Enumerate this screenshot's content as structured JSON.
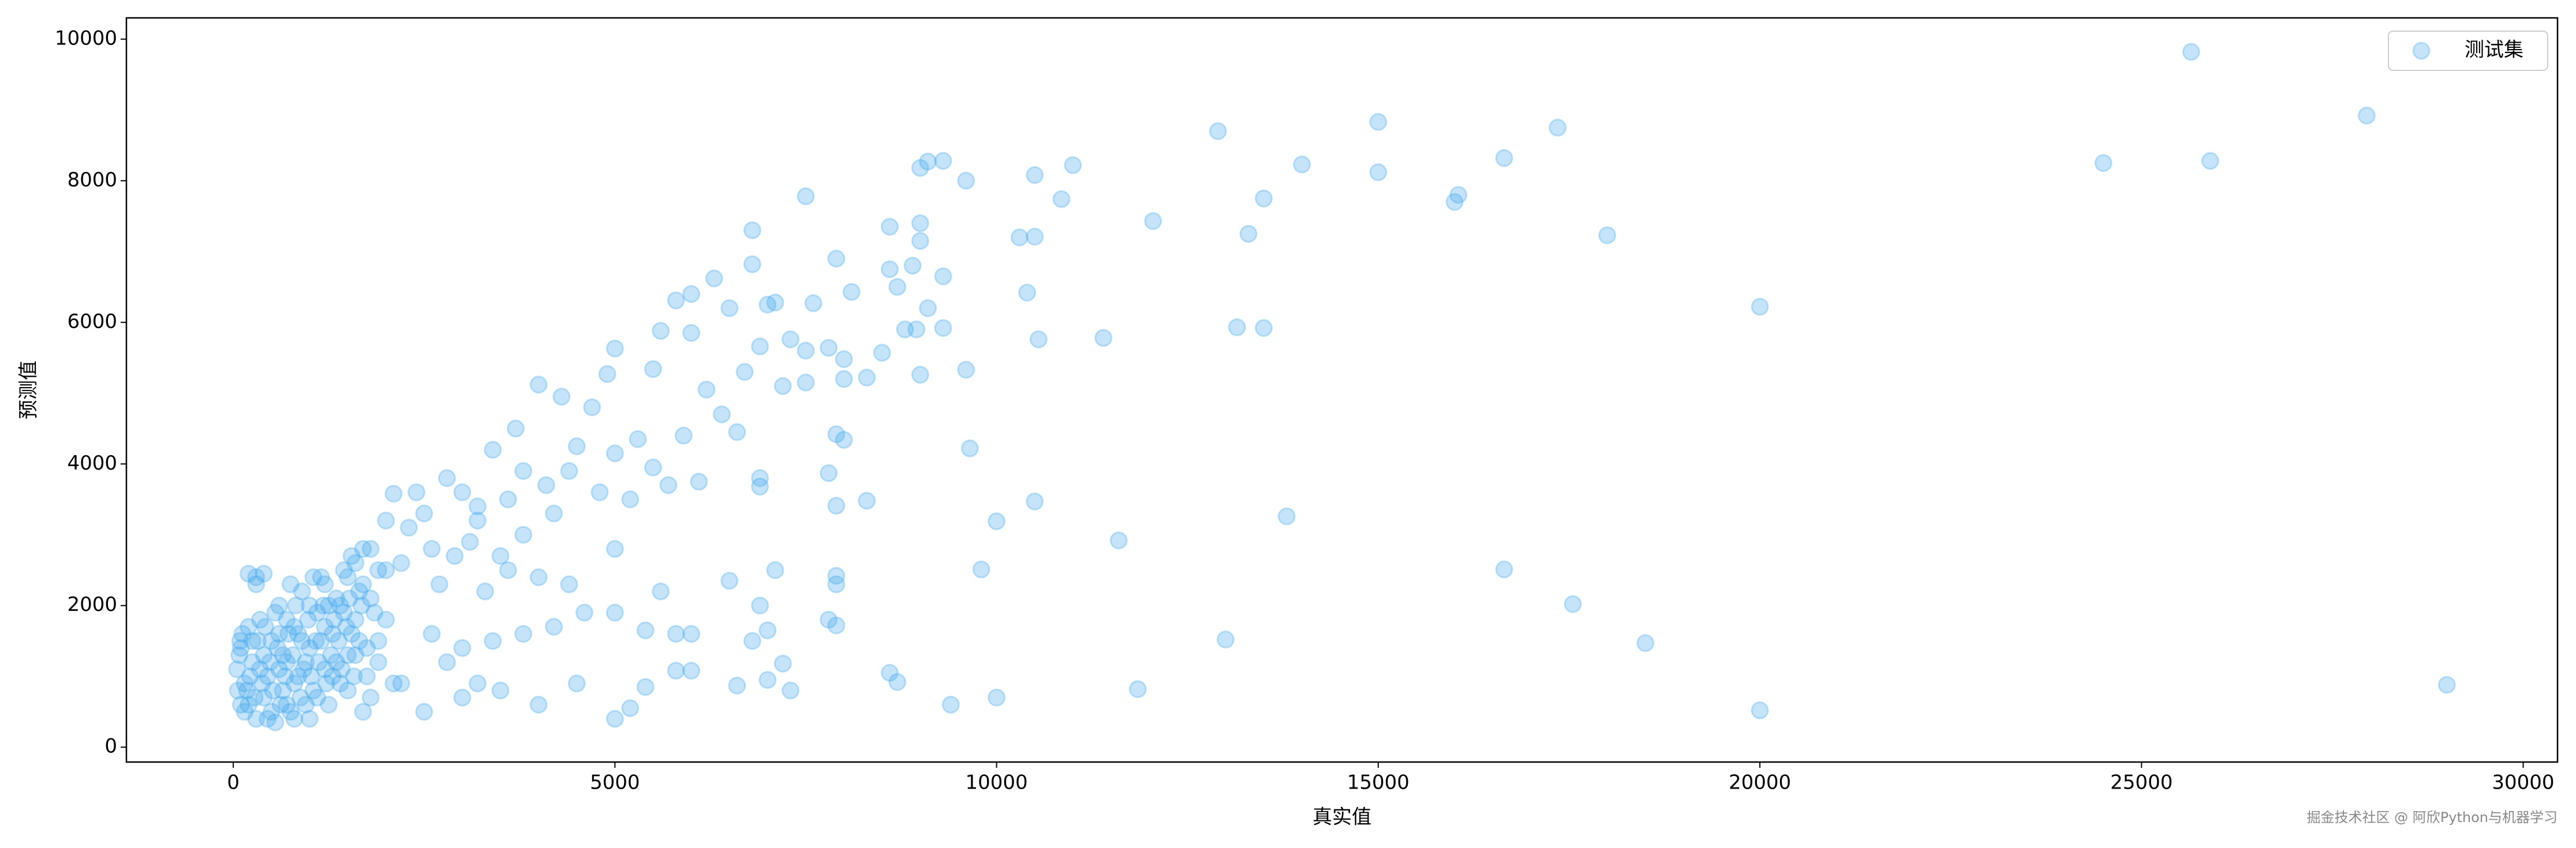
{
  "chart_data": {
    "type": "scatter",
    "xlabel": "真实值",
    "ylabel": "预测值",
    "xlim": [
      -1400,
      30450
    ],
    "ylim": [
      -210,
      10300
    ],
    "xticks": [
      0,
      5000,
      10000,
      15000,
      20000,
      25000,
      30000
    ],
    "yticks": [
      0,
      2000,
      4000,
      6000,
      8000,
      10000
    ],
    "grid": false,
    "legend": "upper right",
    "alpha": 0.3,
    "watermark": "掘金技术社区 @ 阿欣Python与机器学习",
    "series": [
      {
        "name": "测试集",
        "color": "#3fa4ec",
        "x": [
          25650,
          27950,
          24500,
          25900,
          12900,
          15000,
          17350,
          16650,
          14000,
          15000,
          13500,
          16000,
          16050,
          18000,
          13300,
          12050,
          10500,
          11000,
          10850,
          10300,
          10500,
          9100,
          9300,
          9000,
          9600,
          10400,
          10550,
          11400,
          13150,
          13500,
          20000,
          9650,
          10500,
          11600,
          10000,
          13800,
          9800,
          16650,
          17550,
          13000,
          18500,
          11850,
          20000,
          29000,
          10000,
          9400,
          7500,
          6800,
          8600,
          9000,
          9000,
          7900,
          6800,
          6300,
          8600,
          8900,
          9300,
          8100,
          7600,
          7100,
          6500,
          7000,
          8700,
          9100,
          5800,
          6000,
          7300,
          6900,
          7500,
          7800,
          8500,
          8000,
          8950,
          9300,
          8800,
          9000,
          9600,
          5600,
          6000,
          5000,
          4900,
          5500,
          6200,
          6700,
          7200,
          7500,
          8000,
          8300,
          6400,
          6600,
          5900,
          5300,
          4700,
          4300,
          4000,
          3700,
          3400,
          4500,
          5000,
          5500,
          6100,
          6900,
          6900,
          7900,
          8000,
          7800,
          8300,
          7900,
          5700,
          5200,
          4800,
          4200,
          3800,
          3200,
          3000,
          2800,
          2500,
          2300,
          2100,
          2400,
          3100,
          3500,
          4000,
          4400,
          5000,
          5600,
          6500,
          7100,
          7900,
          7900,
          6900,
          7800,
          7900,
          6800,
          7000,
          6000,
          5800,
          5400,
          5000,
          4600,
          4200,
          3800,
          3400,
          3000,
          2600,
          2800,
          3200,
          3500,
          4000,
          4500,
          5000,
          5200,
          5400,
          5800,
          6000,
          6600,
          7000,
          7200,
          7300,
          8600,
          8700,
          3000,
          2500,
          2200,
          1900,
          1800,
          2000,
          2700,
          3300,
          3600,
          4100,
          4400,
          3800,
          3200,
          3600,
          2900,
          2600,
          2200,
          2000,
          1800,
          1600,
          100,
          150,
          200,
          250,
          300,
          350,
          400,
          450,
          500,
          550,
          600,
          650,
          700,
          750,
          800,
          850,
          900,
          950,
          1000,
          1050,
          1100,
          1150,
          1200,
          1250,
          1300,
          1350,
          1400,
          1450,
          1500,
          1550,
          1600,
          1700,
          1750,
          1800,
          1900,
          2000,
          100,
          200,
          300,
          200,
          400,
          300,
          600,
          500,
          700,
          800,
          900,
          1000,
          1100,
          1200,
          1300,
          1400,
          1500,
          1600,
          1700,
          1000,
          1500,
          1200,
          800,
          700,
          400,
          600,
          1900,
          2100,
          1700,
          50,
          80,
          120,
          180,
          220,
          280,
          320,
          380,
          420,
          480,
          520,
          580,
          620,
          680,
          720,
          780,
          820,
          880,
          920,
          980,
          1020,
          1080,
          1120,
          1180,
          1220,
          1280,
          1320,
          1380,
          1420,
          1480,
          1520,
          1580,
          1650,
          1680,
          150,
          250,
          350,
          450,
          550,
          650,
          750,
          850,
          950,
          1050,
          1150,
          1250,
          1350,
          1450,
          1550,
          1650,
          1750,
          1850,
          60,
          90
        ],
        "values": [
          9820,
          8920,
          8250,
          8280,
          8700,
          8830,
          8750,
          8320,
          8230,
          8120,
          7750,
          7700,
          7800,
          7230,
          7250,
          7430,
          8080,
          8220,
          7740,
          7200,
          7210,
          8270,
          8280,
          8180,
          8000,
          6420,
          5760,
          5780,
          5930,
          5920,
          6220,
          4220,
          3470,
          2920,
          3190,
          3260,
          2510,
          2510,
          2020,
          1520,
          1470,
          820,
          520,
          880,
          700,
          600,
          7780,
          7300,
          7350,
          7400,
          7150,
          6900,
          6820,
          6620,
          6750,
          6800,
          6650,
          6430,
          6270,
          6280,
          6200,
          6250,
          6500,
          6200,
          6310,
          6400,
          5760,
          5660,
          5600,
          5640,
          5570,
          5480,
          5900,
          5920,
          5900,
          5260,
          5330,
          5880,
          5850,
          5630,
          5270,
          5340,
          5050,
          5300,
          5100,
          5150,
          5200,
          5220,
          4700,
          4450,
          4400,
          4350,
          4800,
          4950,
          5120,
          4500,
          4200,
          4250,
          4150,
          3950,
          3750,
          3800,
          3680,
          4420,
          4340,
          3870,
          3480,
          3410,
          3700,
          3500,
          3600,
          3300,
          3000,
          3400,
          3600,
          3800,
          3300,
          3100,
          3580,
          3600,
          2900,
          2700,
          2400,
          2300,
          2800,
          2200,
          2350,
          2500,
          2420,
          2300,
          2000,
          1800,
          1720,
          1500,
          1650,
          1600,
          1600,
          1650,
          1900,
          1900,
          1700,
          1600,
          1500,
          1400,
          1600,
          1200,
          900,
          800,
          600,
          900,
          400,
          550,
          850,
          1080,
          1080,
          870,
          950,
          1180,
          800,
          1050,
          920,
          700,
          500,
          900,
          1200,
          2100,
          2500,
          2300,
          2200,
          2500,
          3700,
          3900,
          3900,
          3200,
          3500,
          2700,
          2800,
          2600,
          3200,
          2800,
          2600,
          1400,
          900,
          600,
          1200,
          400,
          1800,
          700,
          1000,
          1500,
          350,
          2000,
          800,
          1200,
          500,
          1700,
          1000,
          2200,
          600,
          1400,
          800,
          1900,
          2400,
          1100,
          600,
          1600,
          2100,
          900,
          2500,
          1300,
          2700,
          1800,
          2300,
          1000,
          700,
          1500,
          1800,
          600,
          1700,
          2300,
          2450,
          2450,
          2400,
          1100,
          500,
          1800,
          400,
          1500,
          2000,
          700,
          2300,
          1000,
          2000,
          800,
          1300,
          500,
          400,
          2400,
          1700,
          900,
          600,
          1300,
          1600,
          2500,
          900,
          2800,
          1100,
          1300,
          1600,
          800,
          1000,
          700,
          1500,
          900,
          1700,
          1200,
          800,
          1400,
          600,
          1000,
          1600,
          1300,
          2000,
          700,
          1100,
          1800,
          1000,
          1500,
          1200,
          2000,
          900,
          1300,
          1800,
          1500,
          1100,
          1700,
          2100,
          1000,
          1500,
          2000,
          500,
          1500,
          1100,
          400,
          1900,
          1300,
          2300,
          1600,
          1200,
          2400,
          1500,
          2000,
          1200,
          1900,
          1600,
          2200,
          1400,
          1900,
          800,
          1500
        ]
      }
    ]
  }
}
